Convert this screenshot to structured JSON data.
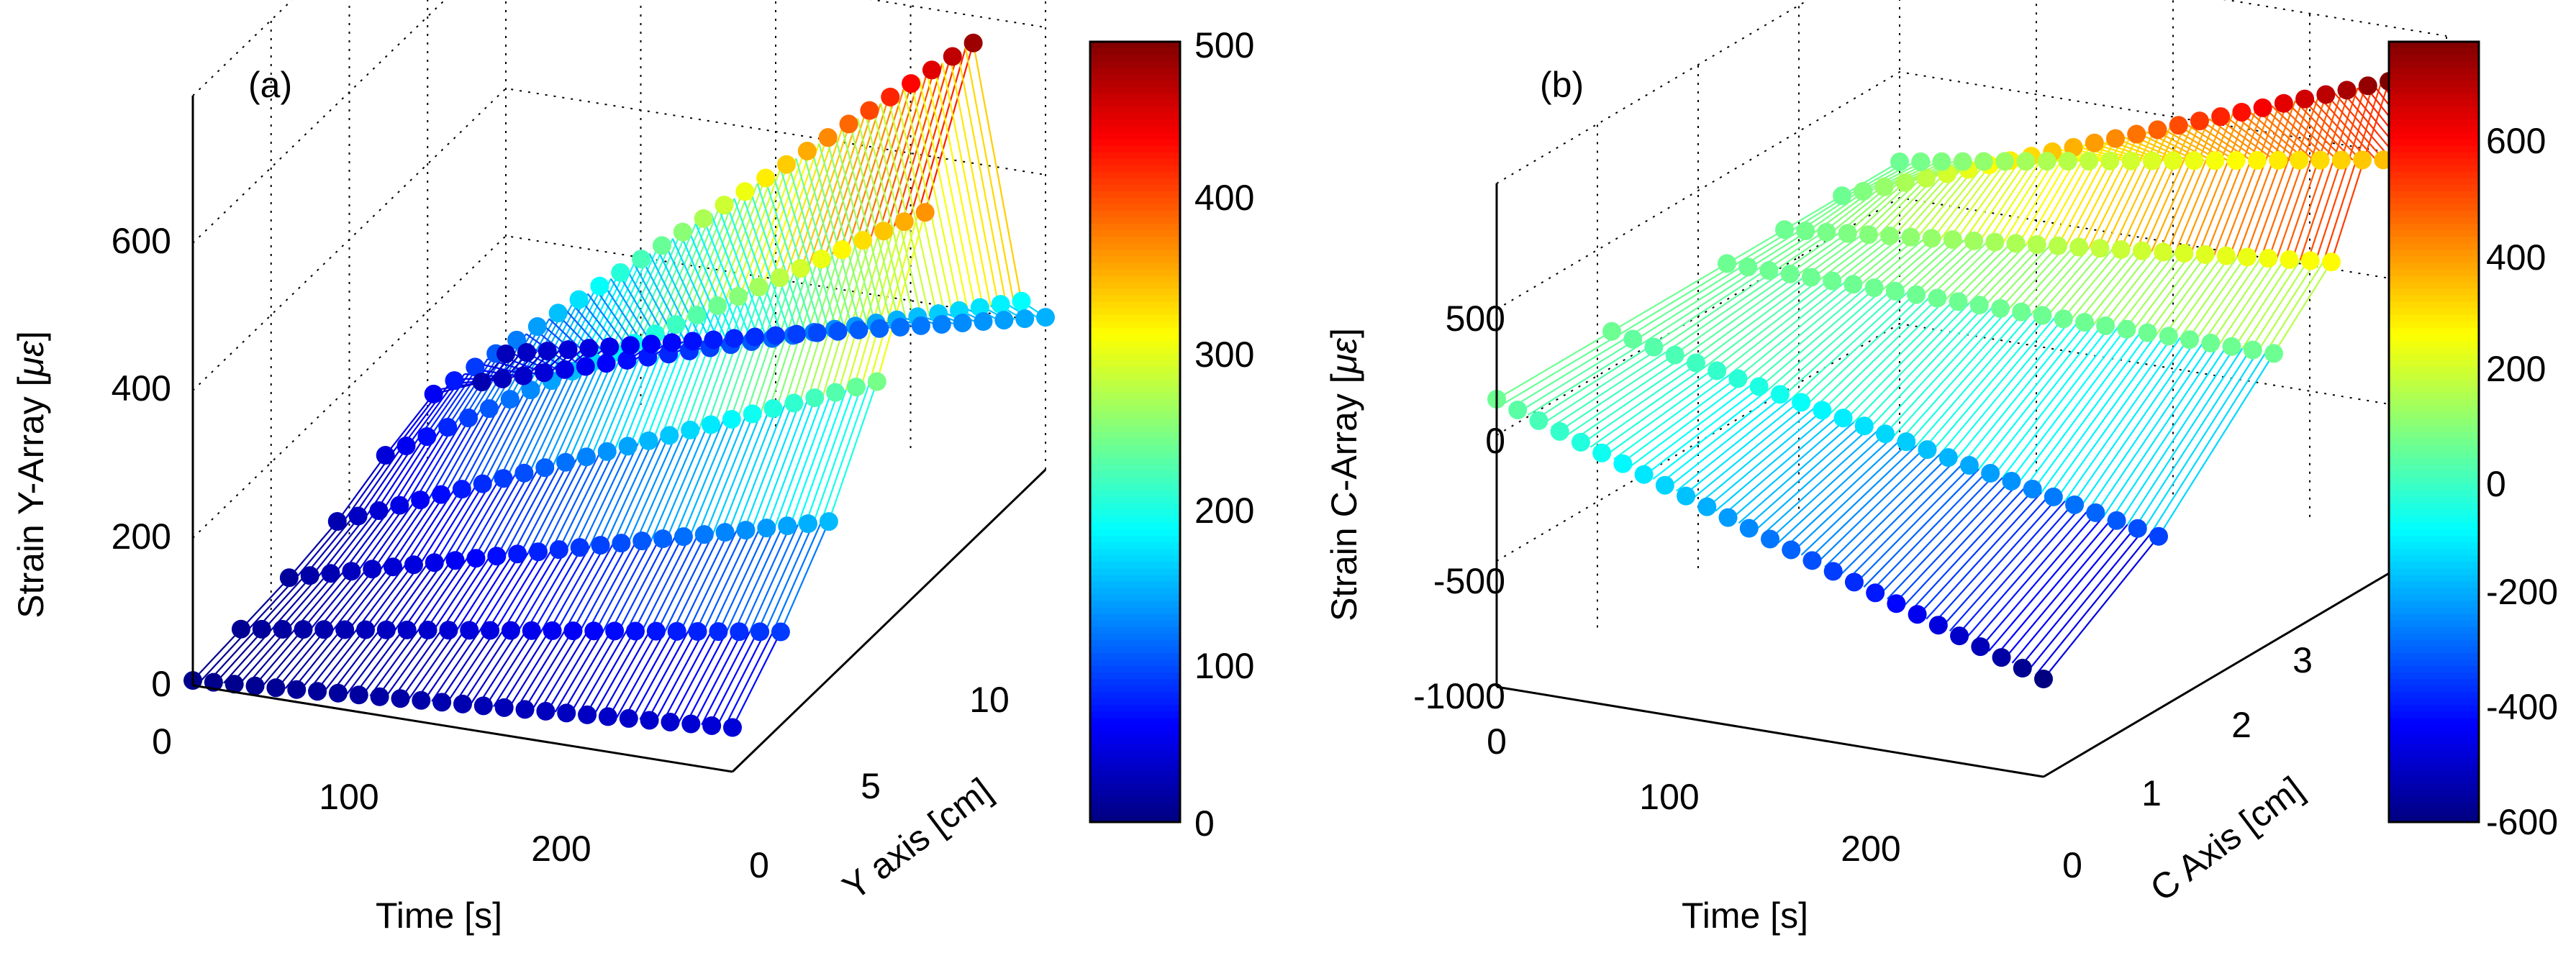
{
  "chart_data": [
    {
      "type": "surface3d",
      "panel_label": "(a)",
      "xlabel": "Time [s]",
      "ylabel": "Y axis [cm]",
      "zlabel_prefix": "Strain Y-Array [",
      "zlabel_symbol": "με",
      "zlabel_suffix": "]",
      "x_ticks": [
        "0",
        "100",
        "200"
      ],
      "y_ticks": [
        "0",
        "5",
        "10"
      ],
      "z_ticks": [
        "0",
        "200",
        "400",
        "600"
      ],
      "xlim": [
        0,
        280
      ],
      "ylim": [
        0,
        13
      ],
      "zlim": [
        0,
        600
      ],
      "colorbar": {
        "ticks": [
          "0",
          "100",
          "200",
          "300",
          "400",
          "500"
        ],
        "range": [
          0,
          520
        ],
        "colormap": "jet"
      },
      "grid": true,
      "series": [
        {
          "y": 0,
          "time": [
            0,
            280
          ],
          "strain": [
            5,
            45
          ]
        },
        {
          "y": 2,
          "time": [
            0,
            280
          ],
          "strain": [
            10,
            95
          ]
        },
        {
          "y": 4,
          "time": [
            0,
            280
          ],
          "strain": [
            15,
            160
          ]
        },
        {
          "y": 6,
          "time": [
            0,
            280
          ],
          "strain": [
            25,
            255
          ]
        },
        {
          "y": 8,
          "time": [
            0,
            280
          ],
          "strain": [
            45,
            380
          ]
        },
        {
          "y": 10,
          "time": [
            0,
            280
          ],
          "strain": [
            60,
            505
          ]
        },
        {
          "y": 12,
          "time": [
            0,
            280
          ],
          "strain": [
            25,
            195
          ]
        },
        {
          "y": 13,
          "time": [
            0,
            280
          ],
          "strain": [
            30,
            155
          ]
        }
      ]
    },
    {
      "type": "surface3d",
      "panel_label": "(b)",
      "xlabel": "Time [s]",
      "ylabel": "C Axis [cm]",
      "zlabel_prefix": "Strain C-Array [",
      "zlabel_symbol": "με",
      "zlabel_suffix": "]",
      "x_ticks": [
        "0",
        "100",
        "200"
      ],
      "y_ticks": [
        "0",
        "1",
        "2",
        "3"
      ],
      "z_ticks": [
        "-1000",
        "-500",
        "0",
        "500"
      ],
      "xlim": [
        0,
        280
      ],
      "ylim": [
        0,
        3.5
      ],
      "zlim": [
        -1000,
        750
      ],
      "colorbar": {
        "ticks": [
          "600",
          "400",
          "200",
          "0",
          "-200",
          "-400",
          "-600"
        ],
        "range": [
          -660,
          710
        ],
        "colormap": "jet"
      },
      "grid": true,
      "series": [
        {
          "y": 0,
          "time": [
            0,
            280
          ],
          "strain": [
            0,
            -660
          ]
        },
        {
          "y": 1,
          "time": [
            0,
            280
          ],
          "strain": [
            0,
            -400
          ]
        },
        {
          "y": 2,
          "time": [
            0,
            280
          ],
          "strain": [
            0,
            0
          ]
        },
        {
          "y": 2.5,
          "time": [
            0,
            280
          ],
          "strain": [
            0,
            200
          ]
        },
        {
          "y": 3,
          "time": [
            0,
            280
          ],
          "strain": [
            0,
            710
          ]
        },
        {
          "y": 3.5,
          "time": [
            0,
            280
          ],
          "strain": [
            0,
            320
          ]
        }
      ]
    }
  ]
}
